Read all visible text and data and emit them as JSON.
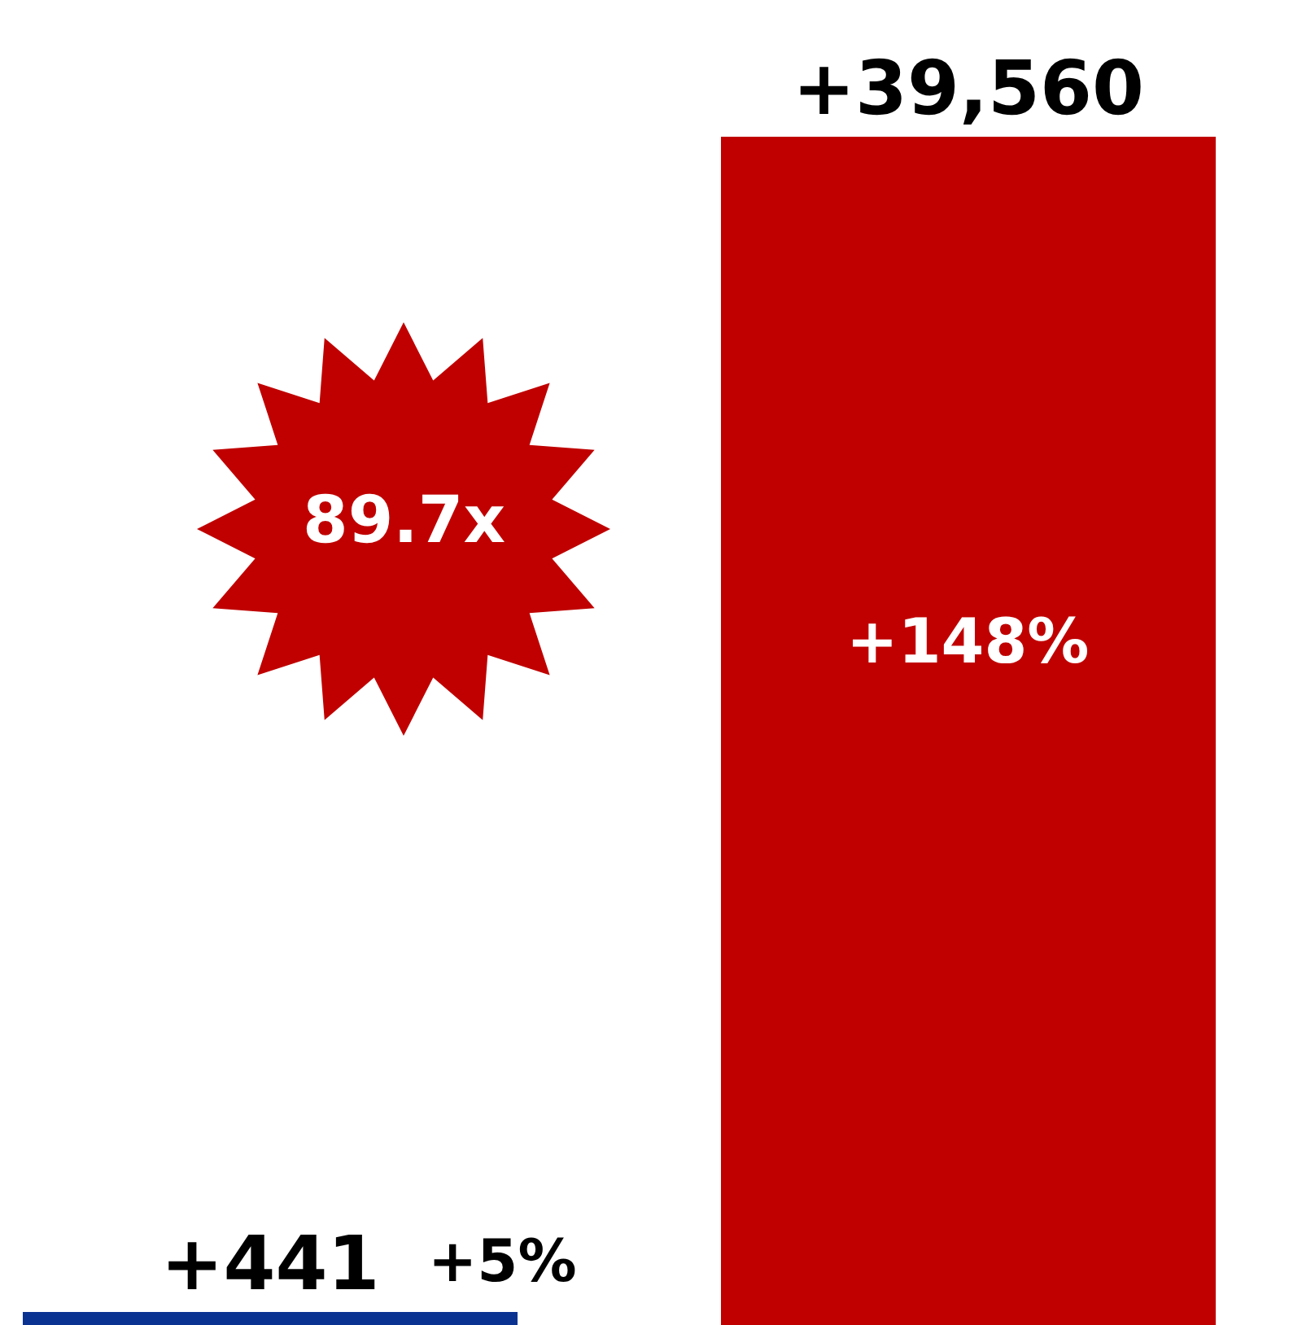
{
  "chart_data": {
    "type": "bar",
    "categories": [
      null,
      null
    ],
    "values": [
      441,
      39560
    ],
    "colors": [
      "#0a3291",
      "#c00000"
    ],
    "value_labels": [
      "+441",
      "+39,560"
    ],
    "annotations": [
      "+5%",
      "+148%",
      "89.7x"
    ],
    "legend": false
  }
}
